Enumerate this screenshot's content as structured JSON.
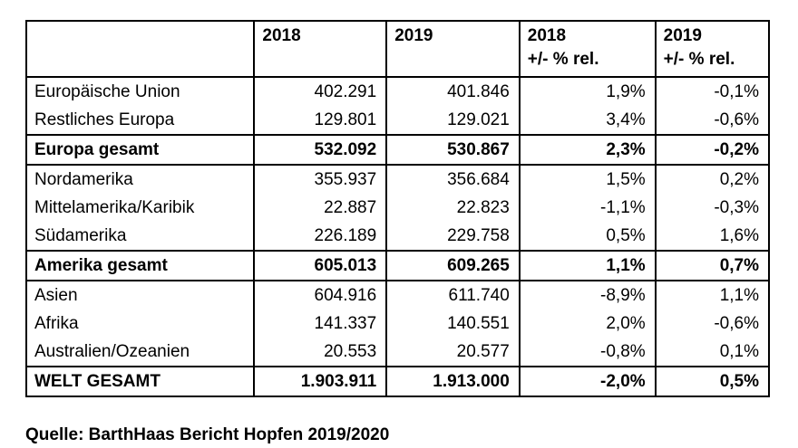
{
  "table": {
    "headers": [
      {
        "line1": "",
        "line2": ""
      },
      {
        "line1": "2018",
        "line2": ""
      },
      {
        "line1": "2019",
        "line2": ""
      },
      {
        "line1": "2018",
        "line2": "+/- % rel."
      },
      {
        "line1": "2019",
        "line2": "+/- % rel."
      }
    ],
    "rows": [
      {
        "label": "Europäische Union",
        "v2018": "402.291",
        "v2019": "401.846",
        "r2018": "1,9%",
        "r2019": "-0,1%",
        "bold": false,
        "rule_above": false
      },
      {
        "label": "Restliches Europa",
        "v2018": "129.801",
        "v2019": "129.021",
        "r2018": "3,4%",
        "r2019": "-0,6%",
        "bold": false,
        "rule_above": false
      },
      {
        "label": "Europa gesamt",
        "v2018": "532.092",
        "v2019": "530.867",
        "r2018": "2,3%",
        "r2019": "-0,2%",
        "bold": true,
        "rule_above": true
      },
      {
        "label": "Nordamerika",
        "v2018": "355.937",
        "v2019": "356.684",
        "r2018": "1,5%",
        "r2019": "0,2%",
        "bold": false,
        "rule_above": true
      },
      {
        "label": "Mittelamerika/Karibik",
        "v2018": "22.887",
        "v2019": "22.823",
        "r2018": "-1,1%",
        "r2019": "-0,3%",
        "bold": false,
        "rule_above": false
      },
      {
        "label": "Südamerika",
        "v2018": "226.189",
        "v2019": "229.758",
        "r2018": "0,5%",
        "r2019": "1,6%",
        "bold": false,
        "rule_above": false
      },
      {
        "label": "Amerika gesamt",
        "v2018": "605.013",
        "v2019": "609.265",
        "r2018": "1,1%",
        "r2019": "0,7%",
        "bold": true,
        "rule_above": true
      },
      {
        "label": "Asien",
        "v2018": "604.916",
        "v2019": "611.740",
        "r2018": "-8,9%",
        "r2019": "1,1%",
        "bold": false,
        "rule_above": true
      },
      {
        "label": "Afrika",
        "v2018": "141.337",
        "v2019": "140.551",
        "r2018": "2,0%",
        "r2019": "-0,6%",
        "bold": false,
        "rule_above": false
      },
      {
        "label": "Australien/Ozeanien",
        "v2018": "20.553",
        "v2019": "20.577",
        "r2018": "-0,8%",
        "r2019": "0,1%",
        "bold": false,
        "rule_above": false
      },
      {
        "label": "WELT GESAMT",
        "v2018": "1.903.911",
        "v2019": "1.913.000",
        "r2018": "-2,0%",
        "r2019": "0,5%",
        "bold": true,
        "rule_above": true
      }
    ]
  },
  "source": "Quelle: BarthHaas Bericht Hopfen 2019/2020"
}
